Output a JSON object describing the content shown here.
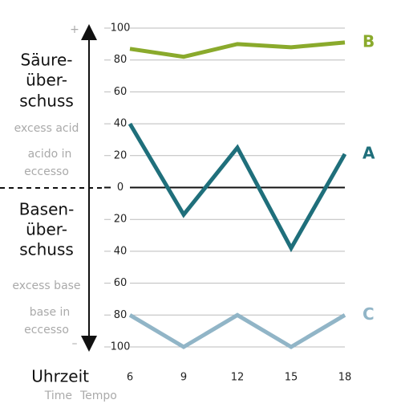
{
  "chart_data": {
    "type": "line",
    "x": [
      6,
      9,
      12,
      15,
      18
    ],
    "xlim": [
      6,
      18
    ],
    "xticks": [
      6,
      9,
      12,
      15,
      18
    ],
    "ylim": [
      -100,
      100
    ],
    "yticks": [
      100,
      80,
      60,
      40,
      20,
      0,
      {
        "value": -20,
        "label": "20"
      },
      {
        "value": -40,
        "label": "40"
      },
      {
        "value": -60,
        "label": "60"
      },
      {
        "value": -80,
        "label": "80"
      },
      {
        "value": -100,
        "label": "100"
      }
    ],
    "grid": true,
    "series": [
      {
        "name": "B",
        "color": "#8aaa2c",
        "values": [
          87,
          82,
          90,
          88,
          91
        ]
      },
      {
        "name": "A",
        "color": "#1f6f7b",
        "values": [
          40,
          -17,
          25,
          -38,
          21
        ]
      },
      {
        "name": "C",
        "color": "#91b5c7",
        "values": [
          -80,
          -100,
          -80,
          -100,
          -80
        ]
      }
    ],
    "x_label": "Uhrzeit",
    "x_label_translations": [
      "Time",
      "Tempo"
    ],
    "annotations": [
      "+",
      "Säure-",
      "über-",
      "schuss",
      "excess acid",
      "acido in",
      "eccesso",
      "Basen-",
      "über-",
      "schuss",
      "excess base",
      "base in",
      "eccesso",
      "–"
    ]
  }
}
